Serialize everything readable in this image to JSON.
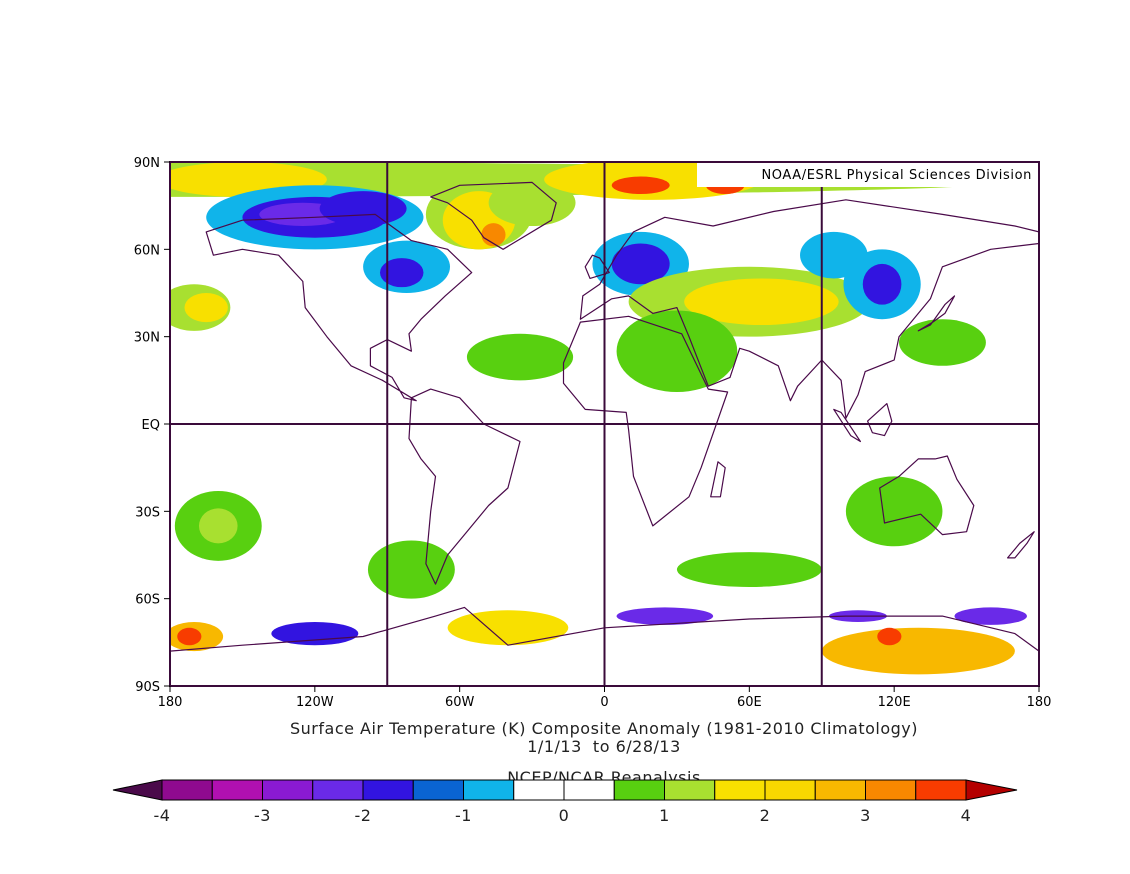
{
  "map": {
    "credit": "NOAA/ESRL Physical Sciences Division",
    "lat_ticks": [
      {
        "v": 90,
        "label": "90N"
      },
      {
        "v": 60,
        "label": "60N"
      },
      {
        "v": 30,
        "label": "30N"
      },
      {
        "v": 0,
        "label": "EQ"
      },
      {
        "v": -30,
        "label": "30S"
      },
      {
        "v": -60,
        "label": "60S"
      },
      {
        "v": -90,
        "label": "90S"
      }
    ],
    "lon_ticks": [
      {
        "v": -180,
        "label": "180"
      },
      {
        "v": -120,
        "label": "120W"
      },
      {
        "v": -60,
        "label": "60W"
      },
      {
        "v": 0,
        "label": "0"
      },
      {
        "v": 60,
        "label": "60E"
      },
      {
        "v": 120,
        "label": "120E"
      },
      {
        "v": 180,
        "label": "180"
      }
    ],
    "gridlines_lon": [
      -90,
      0,
      90
    ],
    "gridlines_lat": [
      0
    ],
    "lon_range": [
      -180,
      180
    ],
    "lat_range": [
      -90,
      90
    ]
  },
  "captions": {
    "title": "Surface Air Temperature (K) Composite Anomaly (1981-2010 Climatology)",
    "dates": "1/1/13  to 6/28/13",
    "source": "NCEP/NCAR Reanalysis"
  },
  "colorbar": {
    "low_color": "#4a0a4a",
    "high_color": "#b40000",
    "colors": [
      "#8f0a8f",
      "#b010b0",
      "#8a1ad2",
      "#6a2ae8",
      "#3214e0",
      "#0a64d2",
      "#10b4ea",
      "#ffffff",
      "#ffffff",
      "#58d010",
      "#a8e030",
      "#f8e000",
      "#f8d800",
      "#f8b800",
      "#f88800",
      "#f83c00"
    ],
    "tick_values": [
      -4,
      -3,
      -2,
      -1,
      0,
      1,
      2,
      3,
      4
    ],
    "tick_labels": [
      "-4",
      "-3",
      "-2",
      "-1",
      "0",
      "1",
      "2",
      "3",
      "4"
    ]
  },
  "anomaly_blobs": [
    {
      "lon": -180,
      "lat": 84,
      "rlon": 360,
      "rlat": 6,
      "c": "#a8e030"
    },
    {
      "lon": -150,
      "lat": 84,
      "rlon": 35,
      "rlat": 6,
      "c": "#f8e000"
    },
    {
      "lon": -120,
      "lat": 71,
      "rlon": 45,
      "rlat": 11,
      "c": "#10b4ea"
    },
    {
      "lon": -120,
      "lat": 71,
      "rlon": 30,
      "rlat": 7,
      "c": "#3214e0"
    },
    {
      "lon": -125,
      "lat": 72,
      "rlon": 18,
      "rlat": 4,
      "c": "#6a2ae8"
    },
    {
      "lon": -100,
      "lat": 74,
      "rlon": 18,
      "rlat": 6,
      "c": "#3214e0"
    },
    {
      "lon": -52,
      "lat": 72,
      "rlon": 22,
      "rlat": 12,
      "c": "#a8e030"
    },
    {
      "lon": -52,
      "lat": 70,
      "rlon": 15,
      "rlat": 10,
      "c": "#f8e000"
    },
    {
      "lon": -46,
      "lat": 65,
      "rlon": 5,
      "rlat": 4,
      "c": "#f88800"
    },
    {
      "lon": -30,
      "lat": 76,
      "rlon": 18,
      "rlat": 8,
      "c": "#a8e030"
    },
    {
      "lon": -82,
      "lat": 54,
      "rlon": 18,
      "rlat": 9,
      "c": "#10b4ea"
    },
    {
      "lon": -84,
      "lat": 52,
      "rlon": 9,
      "rlat": 5,
      "c": "#3214e0"
    },
    {
      "lon": 20,
      "lat": 84,
      "rlon": 45,
      "rlat": 7,
      "c": "#f8e000"
    },
    {
      "lon": 15,
      "lat": 82,
      "rlon": 12,
      "rlat": 3,
      "c": "#f83c00"
    },
    {
      "lon": 50,
      "lat": 82,
      "rlon": 8,
      "rlat": 3,
      "c": "#f83c00"
    },
    {
      "lon": 15,
      "lat": 55,
      "rlon": 20,
      "rlat": 11,
      "c": "#10b4ea"
    },
    {
      "lon": 15,
      "lat": 55,
      "rlon": 12,
      "rlat": 7,
      "c": "#3214e0"
    },
    {
      "lon": 60,
      "lat": 42,
      "rlon": 50,
      "rlat": 12,
      "c": "#a8e030"
    },
    {
      "lon": 65,
      "lat": 42,
      "rlon": 32,
      "rlat": 8,
      "c": "#f8e000"
    },
    {
      "lon": 30,
      "lat": 25,
      "rlon": 25,
      "rlat": 14,
      "c": "#58d010"
    },
    {
      "lon": -35,
      "lat": 23,
      "rlon": 22,
      "rlat": 8,
      "c": "#58d010"
    },
    {
      "lon": -170,
      "lat": 40,
      "rlon": 15,
      "rlat": 8,
      "c": "#a8e030"
    },
    {
      "lon": -165,
      "lat": 40,
      "rlon": 9,
      "rlat": 5,
      "c": "#f8e000"
    },
    {
      "lon": 95,
      "lat": 58,
      "rlon": 14,
      "rlat": 8,
      "c": "#10b4ea"
    },
    {
      "lon": 115,
      "lat": 48,
      "rlon": 16,
      "rlat": 12,
      "c": "#10b4ea"
    },
    {
      "lon": 115,
      "lat": 48,
      "rlon": 8,
      "rlat": 7,
      "c": "#3214e0"
    },
    {
      "lon": 140,
      "lat": 28,
      "rlon": 18,
      "rlat": 8,
      "c": "#58d010"
    },
    {
      "lon": 120,
      "lat": -30,
      "rlon": 20,
      "rlat": 12,
      "c": "#58d010"
    },
    {
      "lon": -160,
      "lat": -35,
      "rlon": 18,
      "rlat": 12,
      "c": "#58d010"
    },
    {
      "lon": -160,
      "lat": -35,
      "rlon": 8,
      "rlat": 6,
      "c": "#a8e030"
    },
    {
      "lon": -80,
      "lat": -50,
      "rlon": 18,
      "rlat": 10,
      "c": "#58d010"
    },
    {
      "lon": 60,
      "lat": -50,
      "rlon": 30,
      "rlat": 6,
      "c": "#58d010"
    },
    {
      "lon": -170,
      "lat": -73,
      "rlon": 12,
      "rlat": 5,
      "c": "#f8b800"
    },
    {
      "lon": -172,
      "lat": -73,
      "rlon": 5,
      "rlat": 3,
      "c": "#f83c00"
    },
    {
      "lon": -120,
      "lat": -72,
      "rlon": 18,
      "rlat": 4,
      "c": "#3214e0"
    },
    {
      "lon": -40,
      "lat": -70,
      "rlon": 25,
      "rlat": 6,
      "c": "#f8e000"
    },
    {
      "lon": 25,
      "lat": -66,
      "rlon": 20,
      "rlat": 3,
      "c": "#6a2ae8"
    },
    {
      "lon": 130,
      "lat": -78,
      "rlon": 40,
      "rlat": 8,
      "c": "#f8b800"
    },
    {
      "lon": 118,
      "lat": -73,
      "rlon": 5,
      "rlat": 3,
      "c": "#f83c00"
    },
    {
      "lon": 160,
      "lat": -66,
      "rlon": 15,
      "rlat": 3,
      "c": "#6a2ae8"
    },
    {
      "lon": 105,
      "lat": -66,
      "rlon": 12,
      "rlat": 2,
      "c": "#6a2ae8"
    }
  ],
  "landmasses": [
    {
      "name": "north-america",
      "pts": [
        [
          -165,
          66
        ],
        [
          -150,
          70
        ],
        [
          -120,
          71
        ],
        [
          -95,
          72
        ],
        [
          -80,
          63
        ],
        [
          -65,
          60
        ],
        [
          -55,
          52
        ],
        [
          -66,
          44
        ],
        [
          -76,
          36
        ],
        [
          -81,
          31
        ],
        [
          -80,
          25
        ],
        [
          -90,
          29
        ],
        [
          -97,
          26
        ],
        [
          -97,
          20
        ],
        [
          -88,
          16
        ],
        [
          -83,
          9
        ],
        [
          -78,
          8
        ],
        [
          -92,
          15
        ],
        [
          -105,
          20
        ],
        [
          -115,
          30
        ],
        [
          -124,
          40
        ],
        [
          -125,
          49
        ],
        [
          -135,
          58
        ],
        [
          -150,
          60
        ],
        [
          -162,
          58
        ]
      ]
    },
    {
      "name": "greenland",
      "pts": [
        [
          -72,
          78
        ],
        [
          -60,
          82
        ],
        [
          -30,
          83
        ],
        [
          -20,
          76
        ],
        [
          -22,
          70
        ],
        [
          -42,
          60
        ],
        [
          -50,
          64
        ],
        [
          -55,
          70
        ],
        [
          -65,
          76
        ]
      ]
    },
    {
      "name": "south-america",
      "pts": [
        [
          -80,
          9
        ],
        [
          -72,
          12
        ],
        [
          -60,
          9
        ],
        [
          -50,
          0
        ],
        [
          -35,
          -6
        ],
        [
          -40,
          -22
        ],
        [
          -48,
          -28
        ],
        [
          -57,
          -37
        ],
        [
          -65,
          -45
        ],
        [
          -70,
          -55
        ],
        [
          -74,
          -48
        ],
        [
          -72,
          -30
        ],
        [
          -70,
          -18
        ],
        [
          -76,
          -12
        ],
        [
          -81,
          -5
        ]
      ]
    },
    {
      "name": "europe-asia",
      "pts": [
        [
          -10,
          36
        ],
        [
          -9,
          44
        ],
        [
          -2,
          48
        ],
        [
          5,
          58
        ],
        [
          12,
          66
        ],
        [
          25,
          71
        ],
        [
          45,
          68
        ],
        [
          70,
          73
        ],
        [
          100,
          77
        ],
        [
          140,
          72
        ],
        [
          170,
          68
        ],
        [
          180,
          66
        ],
        [
          180,
          62
        ],
        [
          160,
          60
        ],
        [
          140,
          54
        ],
        [
          135,
          43
        ],
        [
          122,
          30
        ],
        [
          120,
          22
        ],
        [
          108,
          18
        ],
        [
          105,
          10
        ],
        [
          100,
          2
        ],
        [
          98,
          15
        ],
        [
          90,
          22
        ],
        [
          80,
          13
        ],
        [
          77,
          8
        ],
        [
          72,
          20
        ],
        [
          60,
          25
        ],
        [
          56,
          26
        ],
        [
          52,
          16
        ],
        [
          43,
          13
        ],
        [
          35,
          30
        ],
        [
          30,
          40
        ],
        [
          20,
          38
        ],
        [
          10,
          44
        ],
        [
          3,
          43
        ]
      ]
    },
    {
      "name": "africa",
      "pts": [
        [
          -17,
          21
        ],
        [
          -10,
          35
        ],
        [
          10,
          37
        ],
        [
          32,
          31
        ],
        [
          43,
          12
        ],
        [
          51,
          11
        ],
        [
          40,
          -15
        ],
        [
          35,
          -25
        ],
        [
          20,
          -35
        ],
        [
          12,
          -18
        ],
        [
          10,
          -2
        ],
        [
          9,
          4
        ],
        [
          -8,
          5
        ],
        [
          -17,
          14
        ]
      ]
    },
    {
      "name": "australia",
      "pts": [
        [
          114,
          -22
        ],
        [
          122,
          -18
        ],
        [
          130,
          -12
        ],
        [
          137,
          -12
        ],
        [
          142,
          -11
        ],
        [
          146,
          -19
        ],
        [
          153,
          -28
        ],
        [
          150,
          -37
        ],
        [
          140,
          -38
        ],
        [
          131,
          -31
        ],
        [
          116,
          -34
        ]
      ]
    },
    {
      "name": "antarctica",
      "pts": [
        [
          -180,
          -78
        ],
        [
          -150,
          -76
        ],
        [
          -100,
          -73
        ],
        [
          -70,
          -66
        ],
        [
          -58,
          -63
        ],
        [
          -40,
          -76
        ],
        [
          0,
          -70
        ],
        [
          60,
          -67
        ],
        [
          100,
          -66
        ],
        [
          140,
          -66
        ],
        [
          170,
          -72
        ],
        [
          180,
          -78
        ],
        [
          180,
          -90
        ],
        [
          -180,
          -90
        ]
      ]
    },
    {
      "name": "british-isles",
      "pts": [
        [
          -6,
          50
        ],
        [
          2,
          52
        ],
        [
          -2,
          57
        ],
        [
          -5,
          58
        ],
        [
          -8,
          54
        ]
      ]
    },
    {
      "name": "japan",
      "pts": [
        [
          130,
          32
        ],
        [
          135,
          34
        ],
        [
          141,
          41
        ],
        [
          145,
          44
        ],
        [
          141,
          38
        ],
        [
          136,
          35
        ]
      ]
    },
    {
      "name": "madagascar",
      "pts": [
        [
          44,
          -25
        ],
        [
          48,
          -25
        ],
        [
          50,
          -15
        ],
        [
          47,
          -13
        ]
      ]
    },
    {
      "name": "new-zealand",
      "pts": [
        [
          167,
          -46
        ],
        [
          172,
          -41
        ],
        [
          178,
          -37
        ],
        [
          175,
          -41
        ],
        [
          170,
          -46
        ]
      ]
    },
    {
      "name": "borneo",
      "pts": [
        [
          109,
          1
        ],
        [
          117,
          7
        ],
        [
          119,
          1
        ],
        [
          116,
          -4
        ],
        [
          111,
          -3
        ]
      ]
    },
    {
      "name": "sumatra",
      "pts": [
        [
          95,
          5
        ],
        [
          98,
          4
        ],
        [
          106,
          -6
        ],
        [
          102,
          -4
        ]
      ]
    }
  ]
}
